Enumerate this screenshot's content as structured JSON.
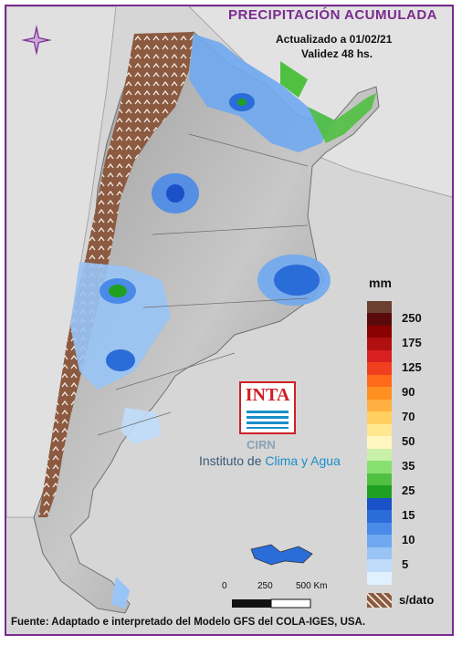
{
  "header": {
    "title": "PRECIPITACIÓN ACUMULADA",
    "updated": "Actualizado a 01/02/21",
    "validity": "Validez 48 hs."
  },
  "legend": {
    "unit": "mm",
    "items": [
      {
        "label": "",
        "color": "#6b4030"
      },
      {
        "label": "250",
        "color": "#5a0a0a"
      },
      {
        "label": "",
        "color": "#8b0000"
      },
      {
        "label": "175",
        "color": "#b01010"
      },
      {
        "label": "",
        "color": "#d82020"
      },
      {
        "label": "125",
        "color": "#f04020"
      },
      {
        "label": "",
        "color": "#ff6a1a"
      },
      {
        "label": "90",
        "color": "#ff9020"
      },
      {
        "label": "",
        "color": "#ffb040"
      },
      {
        "label": "70",
        "color": "#ffd060"
      },
      {
        "label": "",
        "color": "#ffe890"
      },
      {
        "label": "50",
        "color": "#fff6c0"
      },
      {
        "label": "",
        "color": "#c8f0a8"
      },
      {
        "label": "35",
        "color": "#88e070"
      },
      {
        "label": "",
        "color": "#50c040"
      },
      {
        "label": "25",
        "color": "#20a020"
      },
      {
        "label": "",
        "color": "#1a50c8"
      },
      {
        "label": "15",
        "color": "#2a6cd8"
      },
      {
        "label": "",
        "color": "#4a8ae8"
      },
      {
        "label": "10",
        "color": "#70a8f0"
      },
      {
        "label": "",
        "color": "#98c4f6"
      },
      {
        "label": "5",
        "color": "#c0dcfa"
      },
      {
        "label": "",
        "color": "#e0f0ff"
      }
    ],
    "nodata_label": "s/dato",
    "nodata_color": "#8b5a40"
  },
  "logo": {
    "text": "INTA",
    "cirn": "CIRN",
    "institute_prefix": "Instituto de ",
    "institute_highlight": "Clima y Agua"
  },
  "scale": {
    "labels": [
      "0",
      "250",
      "500 Km"
    ]
  },
  "footer": {
    "source": "Fuente: Adaptado e interpretado del Modelo GFS del COLA-IGES, USA."
  }
}
